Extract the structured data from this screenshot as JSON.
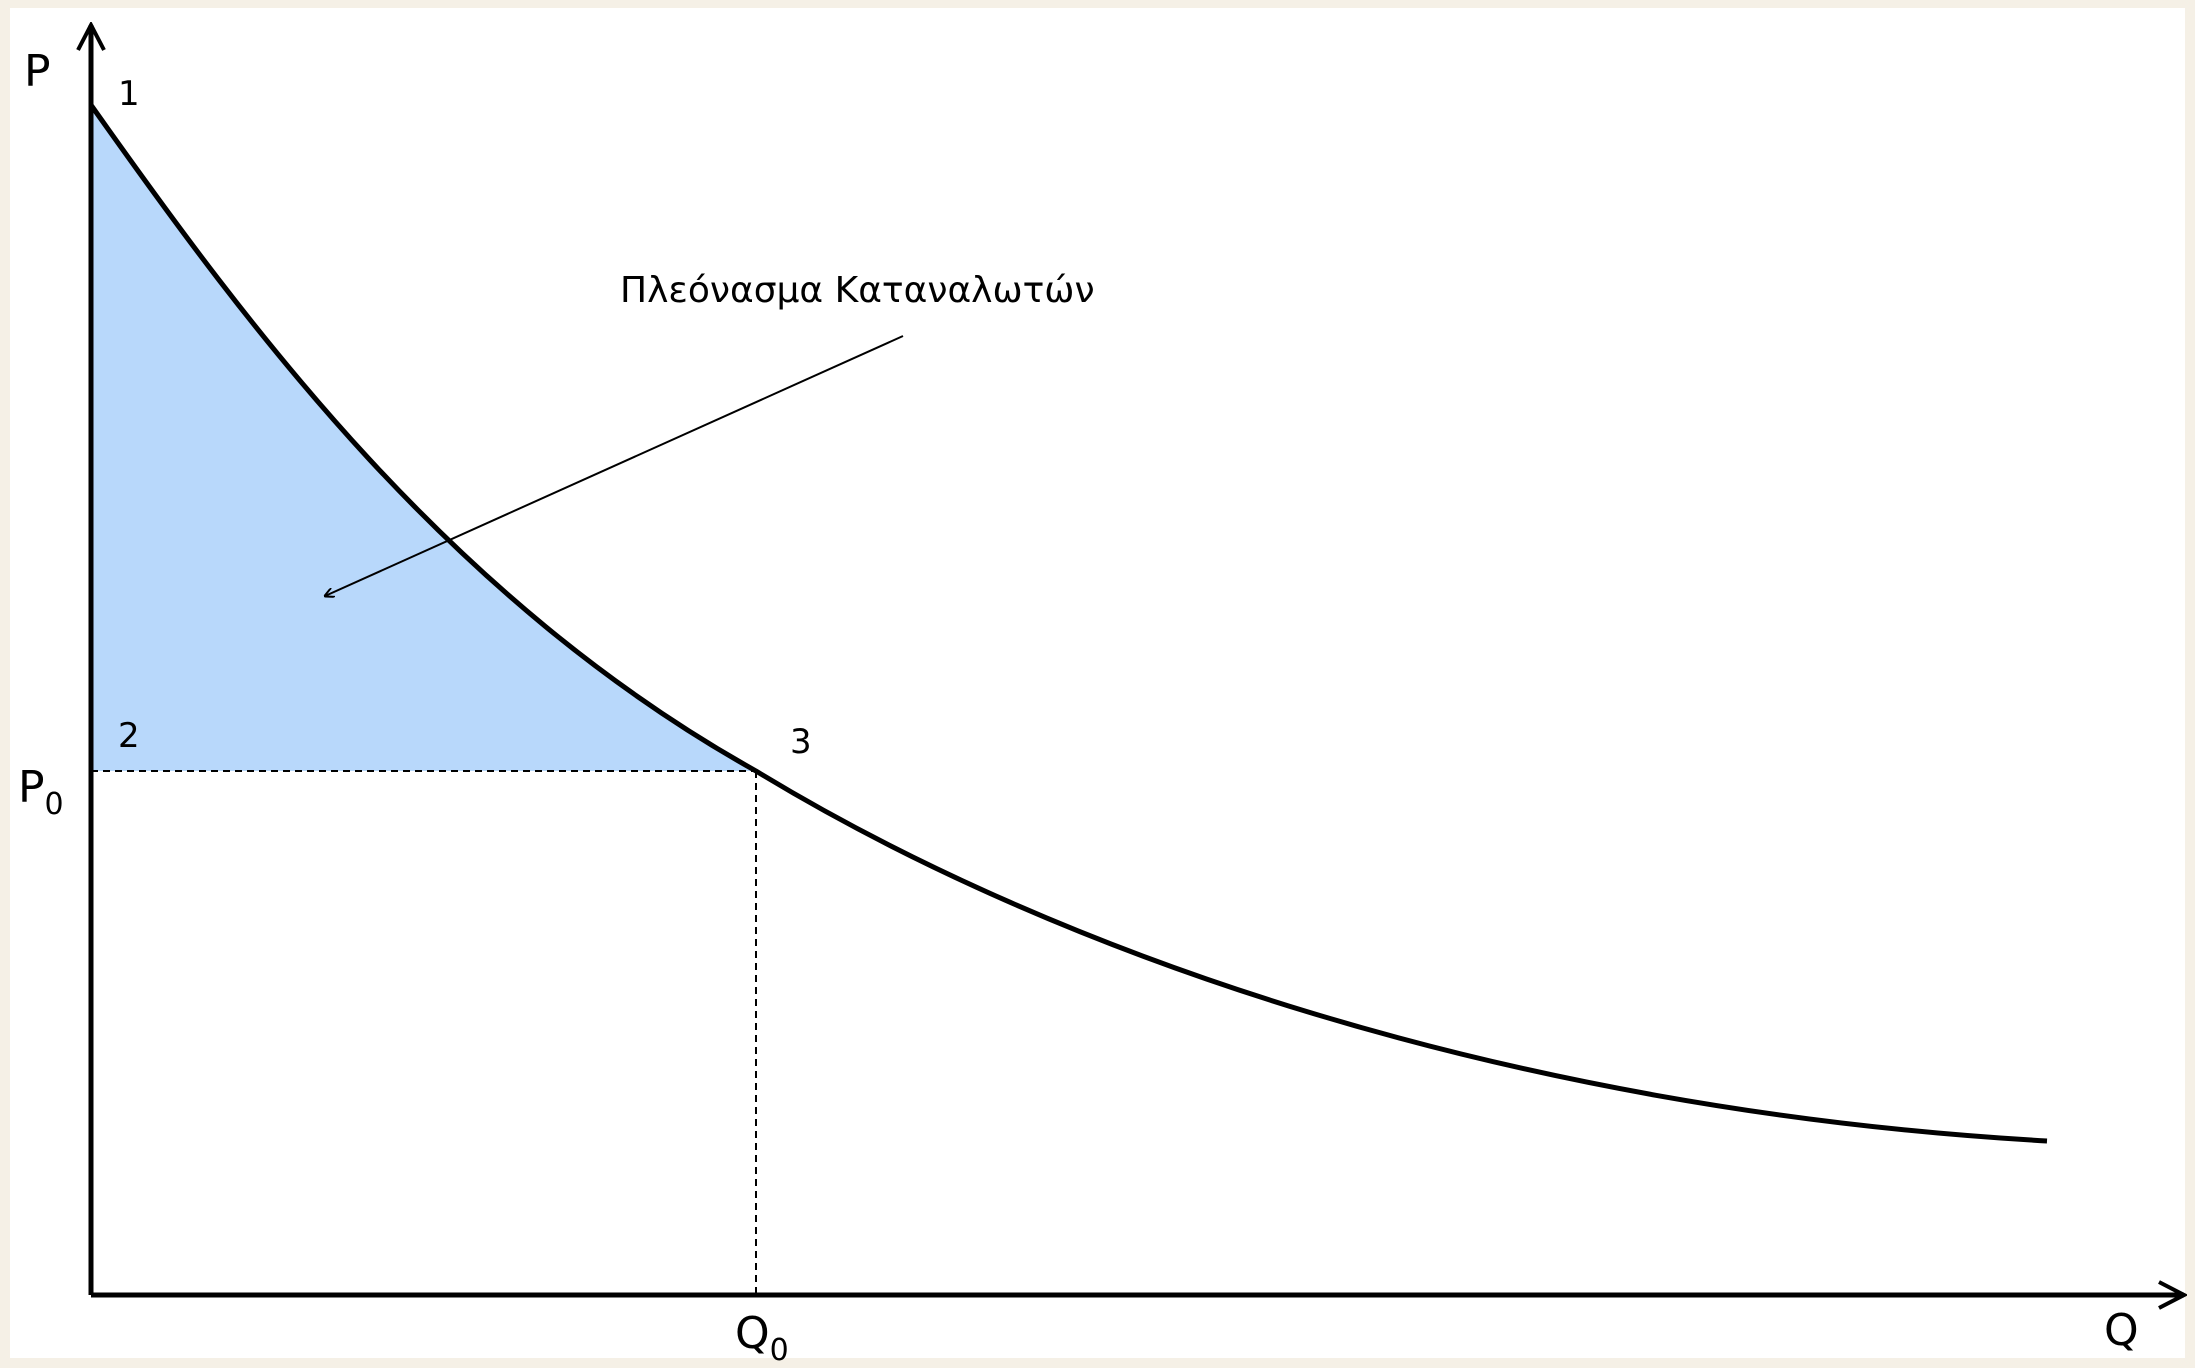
{
  "axes": {
    "y_label": "P",
    "x_label": "Q"
  },
  "price_level": {
    "text": "P",
    "subscript": "0"
  },
  "quantity_level": {
    "text": "Q",
    "subscript": "0"
  },
  "points": [
    "1",
    "2",
    "3"
  ],
  "annotation": "Πλεόνασμα Καταναλωτών"
}
